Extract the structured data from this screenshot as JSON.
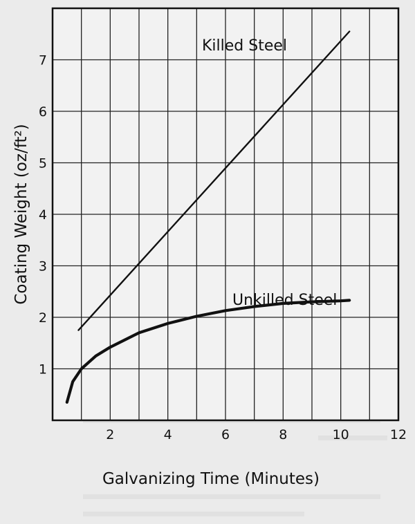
{
  "chart_data": {
    "type": "line",
    "xlabel": "Galvanizing Time (Minutes)",
    "ylabel": "Coating Weight (oz/ft²)",
    "xlim": [
      0,
      12
    ],
    "ylim": [
      0,
      8
    ],
    "x_ticks": [
      "2",
      "4",
      "6",
      "8",
      "10",
      "12"
    ],
    "y_ticks": [
      "1",
      "2",
      "3",
      "4",
      "5",
      "6",
      "7"
    ],
    "grid": true,
    "series": [
      {
        "name": "Killed Steel",
        "x": [
          0.9,
          10.3
        ],
        "y": [
          1.75,
          7.55
        ]
      },
      {
        "name": "Unkilled Steel",
        "x": [
          0.5,
          0.7,
          1.0,
          1.5,
          2.0,
          3.0,
          4.0,
          5.0,
          6.0,
          7.0,
          8.0,
          9.0,
          10.0,
          10.3
        ],
        "y": [
          0.35,
          0.75,
          1.0,
          1.25,
          1.42,
          1.7,
          1.88,
          2.02,
          2.13,
          2.21,
          2.27,
          2.3,
          2.32,
          2.33
        ]
      }
    ]
  }
}
